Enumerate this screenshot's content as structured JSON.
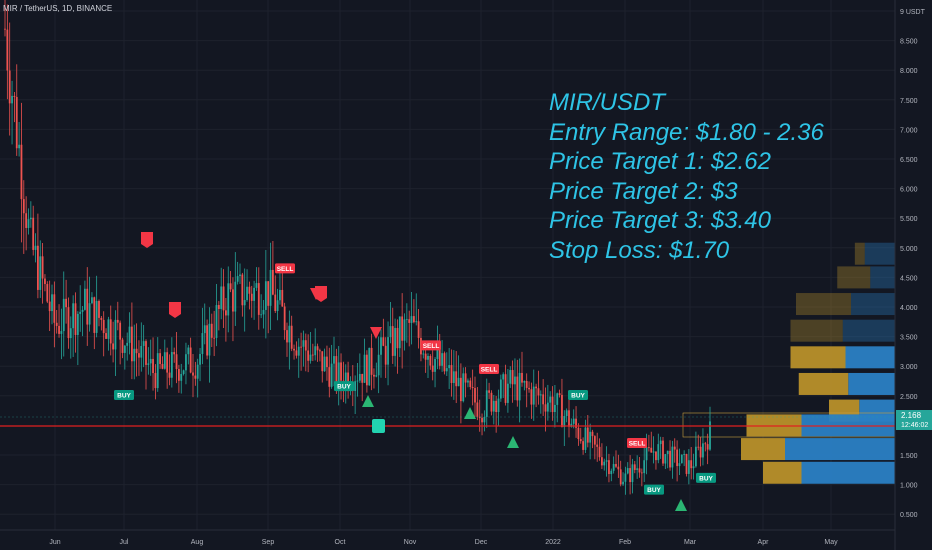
{
  "header": {
    "symbol_line": "MIR / TetherUS, 1D, BINANCE"
  },
  "overlay_text": [
    "MIR/USDT",
    "Entry Range: $1.80 - 2.36",
    "Price Target 1: $2.62",
    "Price Target 2: $3",
    "Price Target 3: $3.40",
    "Stop Loss: $1.70"
  ],
  "price_axis": {
    "ticks": [
      "9 USDT",
      "8.500",
      "8.000",
      "7.500",
      "7.000",
      "6.500",
      "6.000",
      "5.500",
      "5.000",
      "4.500",
      "4.000",
      "3.500",
      "3.000",
      "2.500",
      "1.500",
      "1.000",
      "0.500"
    ],
    "current_price": "2.168",
    "countdown": "12:46:02"
  },
  "time_axis": {
    "labels": [
      "Jun",
      "Jul",
      "Aug",
      "Sep",
      "Oct",
      "Nov",
      "Dec",
      "2022",
      "Feb",
      "Mar",
      "Apr",
      "May"
    ]
  },
  "colors": {
    "background": "#131722",
    "up": "#26a69a",
    "down": "#ef5350",
    "sell_label": "#f23645",
    "buy_label": "#089981",
    "support_line": "#e02020",
    "volume_gold": "#b8902a",
    "volume_blue": "#2a7fc4",
    "overlay_text": "#2ec4e6"
  },
  "chart_data": {
    "type": "candlestick",
    "title": "MIR / TetherUS, 1D, BINANCE",
    "ylim": [
      0.3,
      9.05
    ],
    "price_path_approx": [
      {
        "x": "May",
        "y": 8.7
      },
      {
        "x": "May",
        "y": 5.1
      },
      {
        "x": "Jun",
        "y": 3.7
      },
      {
        "x": "Jun",
        "y": 4.0
      },
      {
        "x": "Jul",
        "y": 3.5
      },
      {
        "x": "Jul",
        "y": 2.9
      },
      {
        "x": "Aug",
        "y": 3.1
      },
      {
        "x": "Aug",
        "y": 4.2
      },
      {
        "x": "Sep",
        "y": 4.3
      },
      {
        "x": "Sep",
        "y": 3.4
      },
      {
        "x": "Oct",
        "y": 2.8
      },
      {
        "x": "Oct",
        "y": 3.0
      },
      {
        "x": "Nov",
        "y": 3.7
      },
      {
        "x": "Nov",
        "y": 3.0
      },
      {
        "x": "Dec",
        "y": 2.3
      },
      {
        "x": "Dec",
        "y": 2.7
      },
      {
        "x": "2022",
        "y": 2.4
      },
      {
        "x": "2022",
        "y": 1.8
      },
      {
        "x": "Feb",
        "y": 1.1
      },
      {
        "x": "Feb",
        "y": 1.6
      },
      {
        "x": "Mar",
        "y": 1.3
      },
      {
        "x": "Mar",
        "y": 2.17
      }
    ],
    "signals": [
      {
        "label": "BUY",
        "x": "Jul",
        "y": 2.7
      },
      {
        "label": "SELL",
        "x": "Sep",
        "y": 4.5
      },
      {
        "label": "BUY",
        "x": "Oct",
        "y": 2.85
      },
      {
        "label": "SELL",
        "x": "Nov",
        "y": 3.2
      },
      {
        "label": "SELL",
        "x": "Dec",
        "y": 2.8
      },
      {
        "label": "BUY",
        "x": "2022",
        "y": 2.7
      },
      {
        "label": "SELL",
        "x": "Feb",
        "y": 1.55
      },
      {
        "label": "BUY",
        "x": "Feb",
        "y": 1.1
      },
      {
        "label": "BUY",
        "x": "Mar",
        "y": 1.3
      }
    ],
    "support_level": 2.0,
    "volume_profile_up_down": [
      {
        "price": 4.9,
        "up": 0.18,
        "down": 0.55
      },
      {
        "price": 4.5,
        "up": 0.6,
        "down": 0.45
      },
      {
        "price": 4.05,
        "up": 1.0,
        "down": 0.8
      },
      {
        "price": 3.6,
        "up": 0.95,
        "down": 0.95
      },
      {
        "price": 3.15,
        "up": 1.0,
        "down": 0.9
      },
      {
        "price": 2.7,
        "up": 0.9,
        "down": 0.85
      },
      {
        "price": 2.25,
        "up": 0.55,
        "down": 0.65
      },
      {
        "price": 2.0,
        "up": 1.0,
        "down": 1.7
      },
      {
        "price": 1.6,
        "up": 0.8,
        "down": 2.0
      },
      {
        "price": 1.2,
        "up": 0.7,
        "down": 1.7
      }
    ]
  }
}
